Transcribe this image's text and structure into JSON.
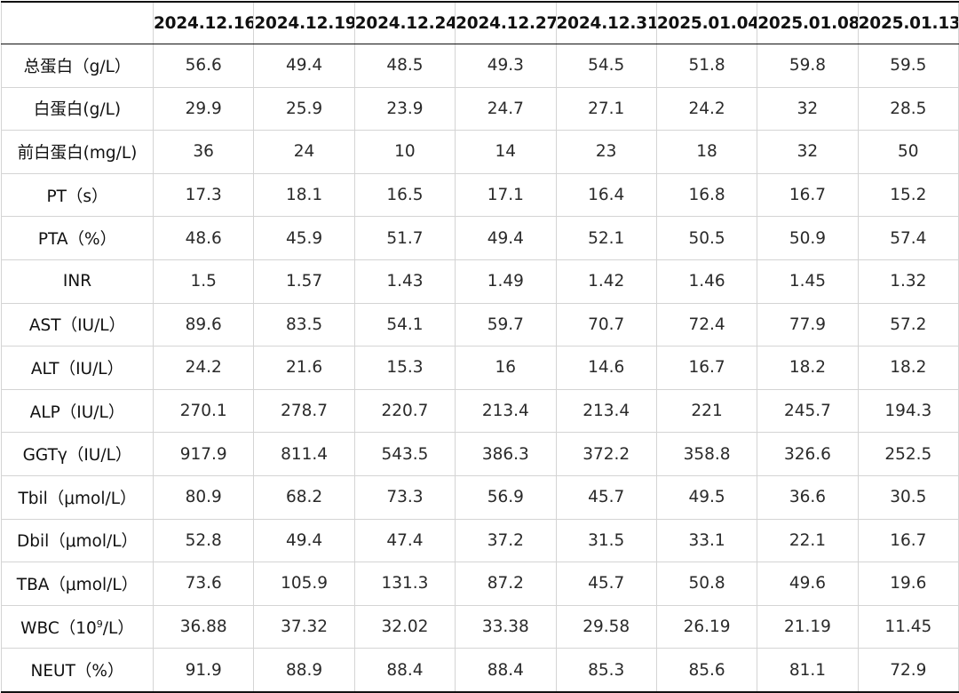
{
  "table": {
    "columns": [
      "",
      "2024.12.16",
      "2024.12.19",
      "2024.12.24",
      "2024.12.27",
      "2024.12.31",
      "2025.01.04",
      "2025.01.08",
      "2025.01.13"
    ],
    "rows": [
      {
        "label": "总蛋白（g/L）",
        "values": [
          "56.6",
          "49.4",
          "48.5",
          "49.3",
          "54.5",
          "51.8",
          "59.8",
          "59.5"
        ]
      },
      {
        "label": "白蛋白(g/L)",
        "values": [
          "29.9",
          "25.9",
          "23.9",
          "24.7",
          "27.1",
          "24.2",
          "32",
          "28.5"
        ]
      },
      {
        "label": "前白蛋白(mg/L)",
        "values": [
          "36",
          "24",
          "10",
          "14",
          "23",
          "18",
          "32",
          "50"
        ]
      },
      {
        "label": "PT（s）",
        "values": [
          "17.3",
          "18.1",
          "16.5",
          "17.1",
          "16.4",
          "16.8",
          "16.7",
          "15.2"
        ]
      },
      {
        "label": "PTA（%）",
        "values": [
          "48.6",
          "45.9",
          "51.7",
          "49.4",
          "52.1",
          "50.5",
          "50.9",
          "57.4"
        ]
      },
      {
        "label": "INR",
        "values": [
          "1.5",
          "1.57",
          "1.43",
          "1.49",
          "1.42",
          "1.46",
          "1.45",
          "1.32"
        ]
      },
      {
        "label": "AST（IU/L）",
        "values": [
          "89.6",
          "83.5",
          "54.1",
          "59.7",
          "70.7",
          "72.4",
          "77.9",
          "57.2"
        ]
      },
      {
        "label": "ALT（IU/L）",
        "values": [
          "24.2",
          "21.6",
          "15.3",
          "16",
          "14.6",
          "16.7",
          "18.2",
          "18.2"
        ]
      },
      {
        "label": "ALP（IU/L）",
        "values": [
          "270.1",
          "278.7",
          "220.7",
          "213.4",
          "213.4",
          "221",
          "245.7",
          "194.3"
        ]
      },
      {
        "label": "GGTγ（IU/L）",
        "values": [
          "917.9",
          "811.4",
          "543.5",
          "386.3",
          "372.2",
          "358.8",
          "326.6",
          "252.5"
        ]
      },
      {
        "label": "Tbil（μmol/L）",
        "values": [
          "80.9",
          "68.2",
          "73.3",
          "56.9",
          "45.7",
          "49.5",
          "36.6",
          "30.5"
        ]
      },
      {
        "label": "Dbil（μmol/L）",
        "values": [
          "52.8",
          "49.4",
          "47.4",
          "37.2",
          "31.5",
          "33.1",
          "22.1",
          "16.7"
        ]
      },
      {
        "label": "TBA（μmol/L）",
        "values": [
          "73.6",
          "105.9",
          "131.3",
          "87.2",
          "45.7",
          "50.8",
          "49.6",
          "19.6"
        ]
      },
      {
        "label": "WBC（10",
        "label_sup": "9",
        "label_suffix": "/L）",
        "values": [
          "36.88",
          "37.32",
          "32.02",
          "33.38",
          "29.58",
          "26.19",
          "21.19",
          "11.45"
        ]
      },
      {
        "label": "NEUT（%）",
        "values": [
          "91.9",
          "88.9",
          "88.4",
          "88.4",
          "85.3",
          "85.6",
          "81.1",
          "72.9"
        ]
      }
    ]
  }
}
